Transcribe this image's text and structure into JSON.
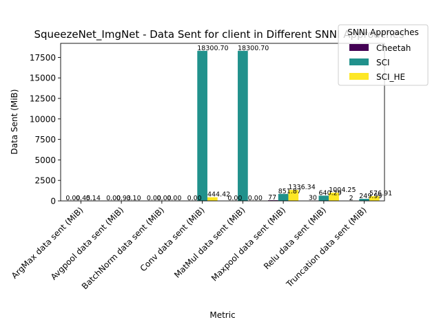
{
  "chart_data": {
    "type": "bar",
    "title": "SqueezeNet_ImgNet - Data Sent for client in Different SNNI Approaches",
    "xlabel": "Metric",
    "ylabel": "Data Sent (MiB)",
    "ylim": [
      0,
      19215.7
    ],
    "yticks": [
      0,
      2500,
      5000,
      7500,
      10000,
      12500,
      15000,
      17500
    ],
    "ytick_labels": [
      "0",
      "2500",
      "5000",
      "7500",
      "10000",
      "12500",
      "15000",
      "17500"
    ],
    "grid": false,
    "legend": {
      "title": "SNNI Approaches",
      "placement": "top-right"
    },
    "categories": [
      "ArgMax data sent (MiB)",
      "Avgpool data sent (MiB)",
      "BatchNorm data sent (MiB)",
      "Conv data sent (MiB)",
      "MatMul data sent (MiB)",
      "Maxpool data sent (MiB)",
      "Relu data sent (MiB)",
      "Truncation data sent (MiB)"
    ],
    "series": [
      {
        "name": "Cheetah",
        "color": "#440154",
        "values": [
          0.0,
          0.0,
          0.0,
          0.0,
          0.0,
          77.0,
          30.0,
          2.0
        ],
        "labels": [
          "0.00",
          "0.00",
          "0.00",
          "0.00",
          "0.00",
          "77",
          "30",
          "2"
        ]
      },
      {
        "name": "SCI",
        "color": "#21918c",
        "values": [
          0.45,
          0.93,
          0.0,
          18300.7,
          18300.7,
          851.87,
          640.29,
          249.99
        ],
        "labels": [
          "0.45",
          "0.93",
          "0.00",
          "18300.70",
          "18300.70",
          "851.87",
          "640.29",
          "249.99"
        ]
      },
      {
        "name": "SCI_HE",
        "color": "#fde725",
        "values": [
          0.14,
          0.1,
          0.0,
          444.42,
          0.0,
          1336.34,
          1004.25,
          576.91
        ],
        "labels": [
          "0.14",
          "0.10",
          "0.00",
          "444.42",
          "0.00",
          "1336.34",
          "1004.25",
          "576.91"
        ]
      }
    ]
  }
}
